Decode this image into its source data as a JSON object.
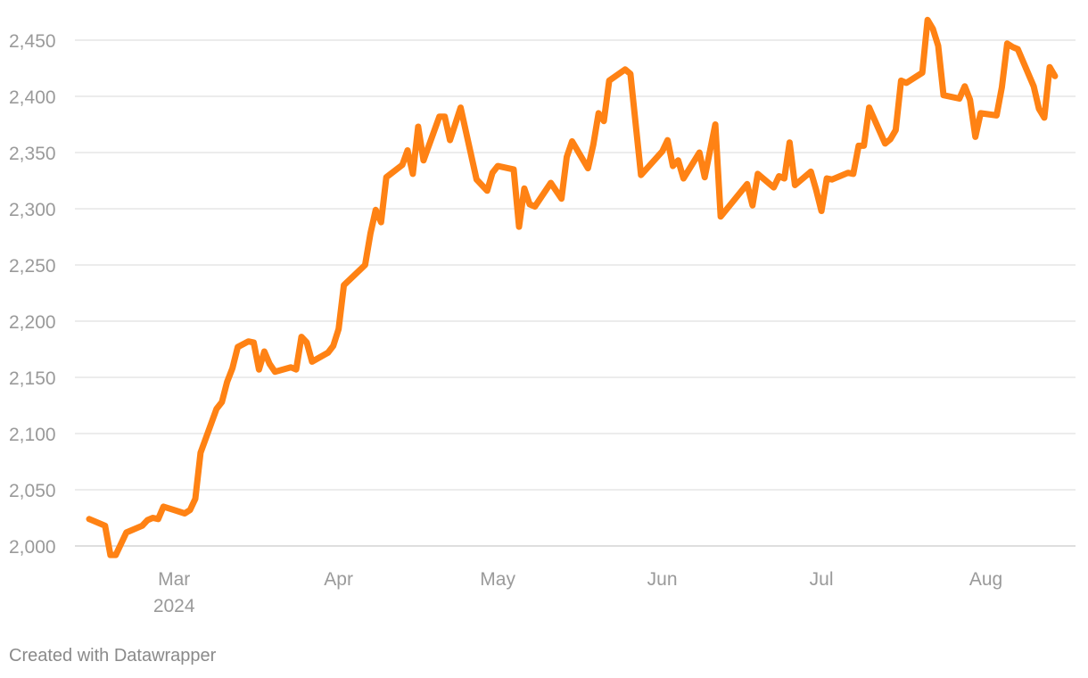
{
  "credit": "Created with Datawrapper",
  "chart_data": {
    "type": "line",
    "title": "",
    "xlabel": "",
    "ylabel": "",
    "line_color": "#ff8214",
    "grid": true,
    "ylim": [
      2000,
      2460
    ],
    "xlim": [
      "2024-02-14",
      "2024-08-09"
    ],
    "y_ticks": [
      {
        "value": 2000,
        "label": "2,000"
      },
      {
        "value": 2050,
        "label": "2,050"
      },
      {
        "value": 2100,
        "label": "2,100"
      },
      {
        "value": 2150,
        "label": "2,150"
      },
      {
        "value": 2200,
        "label": "2,200"
      },
      {
        "value": 2250,
        "label": "2,250"
      },
      {
        "value": 2300,
        "label": "2,300"
      },
      {
        "value": 2350,
        "label": "2,350"
      },
      {
        "value": 2400,
        "label": "2,400"
      },
      {
        "value": 2450,
        "label": "2,450"
      }
    ],
    "x_ticks": [
      {
        "date": "2024-03-01",
        "label": "Mar",
        "sublabel": "2024"
      },
      {
        "date": "2024-04-01",
        "label": "Apr"
      },
      {
        "date": "2024-05-01",
        "label": "May"
      },
      {
        "date": "2024-06-01",
        "label": "Jun"
      },
      {
        "date": "2024-07-01",
        "label": "Jul"
      },
      {
        "date": "2024-08-01",
        "label": "Aug"
      }
    ],
    "series": [
      {
        "points": [
          [
            "2024-02-14",
            2024
          ],
          [
            "2024-02-15",
            2022
          ],
          [
            "2024-02-16",
            2020
          ],
          [
            "2024-02-17",
            2018
          ],
          [
            "2024-02-18",
            1992
          ],
          [
            "2024-02-19",
            1992
          ],
          [
            "2024-02-21",
            2012
          ],
          [
            "2024-02-23",
            2016
          ],
          [
            "2024-02-24",
            2018
          ],
          [
            "2024-02-25",
            2023
          ],
          [
            "2024-02-26",
            2025
          ],
          [
            "2024-02-27",
            2024
          ],
          [
            "2024-02-28",
            2035
          ],
          [
            "2024-03-01",
            2032
          ],
          [
            "2024-03-03",
            2029
          ],
          [
            "2024-03-04",
            2032
          ],
          [
            "2024-03-05",
            2042
          ],
          [
            "2024-03-06",
            2083
          ],
          [
            "2024-03-07",
            2096
          ],
          [
            "2024-03-09",
            2122
          ],
          [
            "2024-03-10",
            2128
          ],
          [
            "2024-03-11",
            2146
          ],
          [
            "2024-03-12",
            2158
          ],
          [
            "2024-03-13",
            2177
          ],
          [
            "2024-03-15",
            2182
          ],
          [
            "2024-03-16",
            2181
          ],
          [
            "2024-03-17",
            2157
          ],
          [
            "2024-03-18",
            2173
          ],
          [
            "2024-03-19",
            2162
          ],
          [
            "2024-03-20",
            2155
          ],
          [
            "2024-03-23",
            2159
          ],
          [
            "2024-03-24",
            2157
          ],
          [
            "2024-03-25",
            2186
          ],
          [
            "2024-03-26",
            2181
          ],
          [
            "2024-03-27",
            2164
          ],
          [
            "2024-03-30",
            2172
          ],
          [
            "2024-03-31",
            2178
          ],
          [
            "2024-04-01",
            2193
          ],
          [
            "2024-04-02",
            2232
          ],
          [
            "2024-04-06",
            2250
          ],
          [
            "2024-04-07",
            2278
          ],
          [
            "2024-04-08",
            2299
          ],
          [
            "2024-04-09",
            2288
          ],
          [
            "2024-04-10",
            2328
          ],
          [
            "2024-04-13",
            2339
          ],
          [
            "2024-04-14",
            2352
          ],
          [
            "2024-04-15",
            2331
          ],
          [
            "2024-04-16",
            2373
          ],
          [
            "2024-04-17",
            2343
          ],
          [
            "2024-04-20",
            2382
          ],
          [
            "2024-04-21",
            2382
          ],
          [
            "2024-04-22",
            2361
          ],
          [
            "2024-04-24",
            2390
          ],
          [
            "2024-04-27",
            2326
          ],
          [
            "2024-04-29",
            2316
          ],
          [
            "2024-04-30",
            2332
          ],
          [
            "2024-05-01",
            2338
          ],
          [
            "2024-05-04",
            2335
          ],
          [
            "2024-05-05",
            2284
          ],
          [
            "2024-05-06",
            2318
          ],
          [
            "2024-05-07",
            2304
          ],
          [
            "2024-05-08",
            2302
          ],
          [
            "2024-05-11",
            2323
          ],
          [
            "2024-05-13",
            2309
          ],
          [
            "2024-05-14",
            2346
          ],
          [
            "2024-05-15",
            2360
          ],
          [
            "2024-05-18",
            2336
          ],
          [
            "2024-05-19",
            2357
          ],
          [
            "2024-05-20",
            2385
          ],
          [
            "2024-05-21",
            2378
          ],
          [
            "2024-05-22",
            2414
          ],
          [
            "2024-05-25",
            2424
          ],
          [
            "2024-05-26",
            2420
          ],
          [
            "2024-05-28",
            2330
          ],
          [
            "2024-06-01",
            2351
          ],
          [
            "2024-06-02",
            2361
          ],
          [
            "2024-06-03",
            2338
          ],
          [
            "2024-06-04",
            2343
          ],
          [
            "2024-06-05",
            2327
          ],
          [
            "2024-06-08",
            2350
          ],
          [
            "2024-06-09",
            2328
          ],
          [
            "2024-06-11",
            2375
          ],
          [
            "2024-06-12",
            2293
          ],
          [
            "2024-06-17",
            2322
          ],
          [
            "2024-06-18",
            2303
          ],
          [
            "2024-06-19",
            2331
          ],
          [
            "2024-06-22",
            2319
          ],
          [
            "2024-06-23",
            2329
          ],
          [
            "2024-06-24",
            2327
          ],
          [
            "2024-06-25",
            2359
          ],
          [
            "2024-06-26",
            2321
          ],
          [
            "2024-06-29",
            2333
          ],
          [
            "2024-06-30",
            2317
          ],
          [
            "2024-07-01",
            2298
          ],
          [
            "2024-07-02",
            2327
          ],
          [
            "2024-07-03",
            2326
          ],
          [
            "2024-07-06",
            2332
          ],
          [
            "2024-07-07",
            2331
          ],
          [
            "2024-07-08",
            2356
          ],
          [
            "2024-07-09",
            2356
          ],
          [
            "2024-07-10",
            2390
          ],
          [
            "2024-07-13",
            2358
          ],
          [
            "2024-07-14",
            2362
          ],
          [
            "2024-07-15",
            2370
          ],
          [
            "2024-07-16",
            2414
          ],
          [
            "2024-07-17",
            2412
          ],
          [
            "2024-07-20",
            2421
          ],
          [
            "2024-07-21",
            2468
          ],
          [
            "2024-07-22",
            2460
          ],
          [
            "2024-07-23",
            2445
          ],
          [
            "2024-07-24",
            2401
          ],
          [
            "2024-07-27",
            2398
          ],
          [
            "2024-07-28",
            2409
          ],
          [
            "2024-07-29",
            2397
          ],
          [
            "2024-07-30",
            2364
          ],
          [
            "2024-07-31",
            2385
          ],
          [
            "2024-08-03",
            2383
          ],
          [
            "2024-08-04",
            2408
          ],
          [
            "2024-08-05",
            2447
          ],
          [
            "2024-08-06",
            2444
          ],
          [
            "2024-08-07",
            2442
          ],
          [
            "2024-08-10",
            2409
          ],
          [
            "2024-08-11",
            2389
          ],
          [
            "2024-08-12",
            2381
          ],
          [
            "2024-08-13",
            2426
          ],
          [
            "2024-08-14",
            2418
          ]
        ]
      }
    ]
  }
}
